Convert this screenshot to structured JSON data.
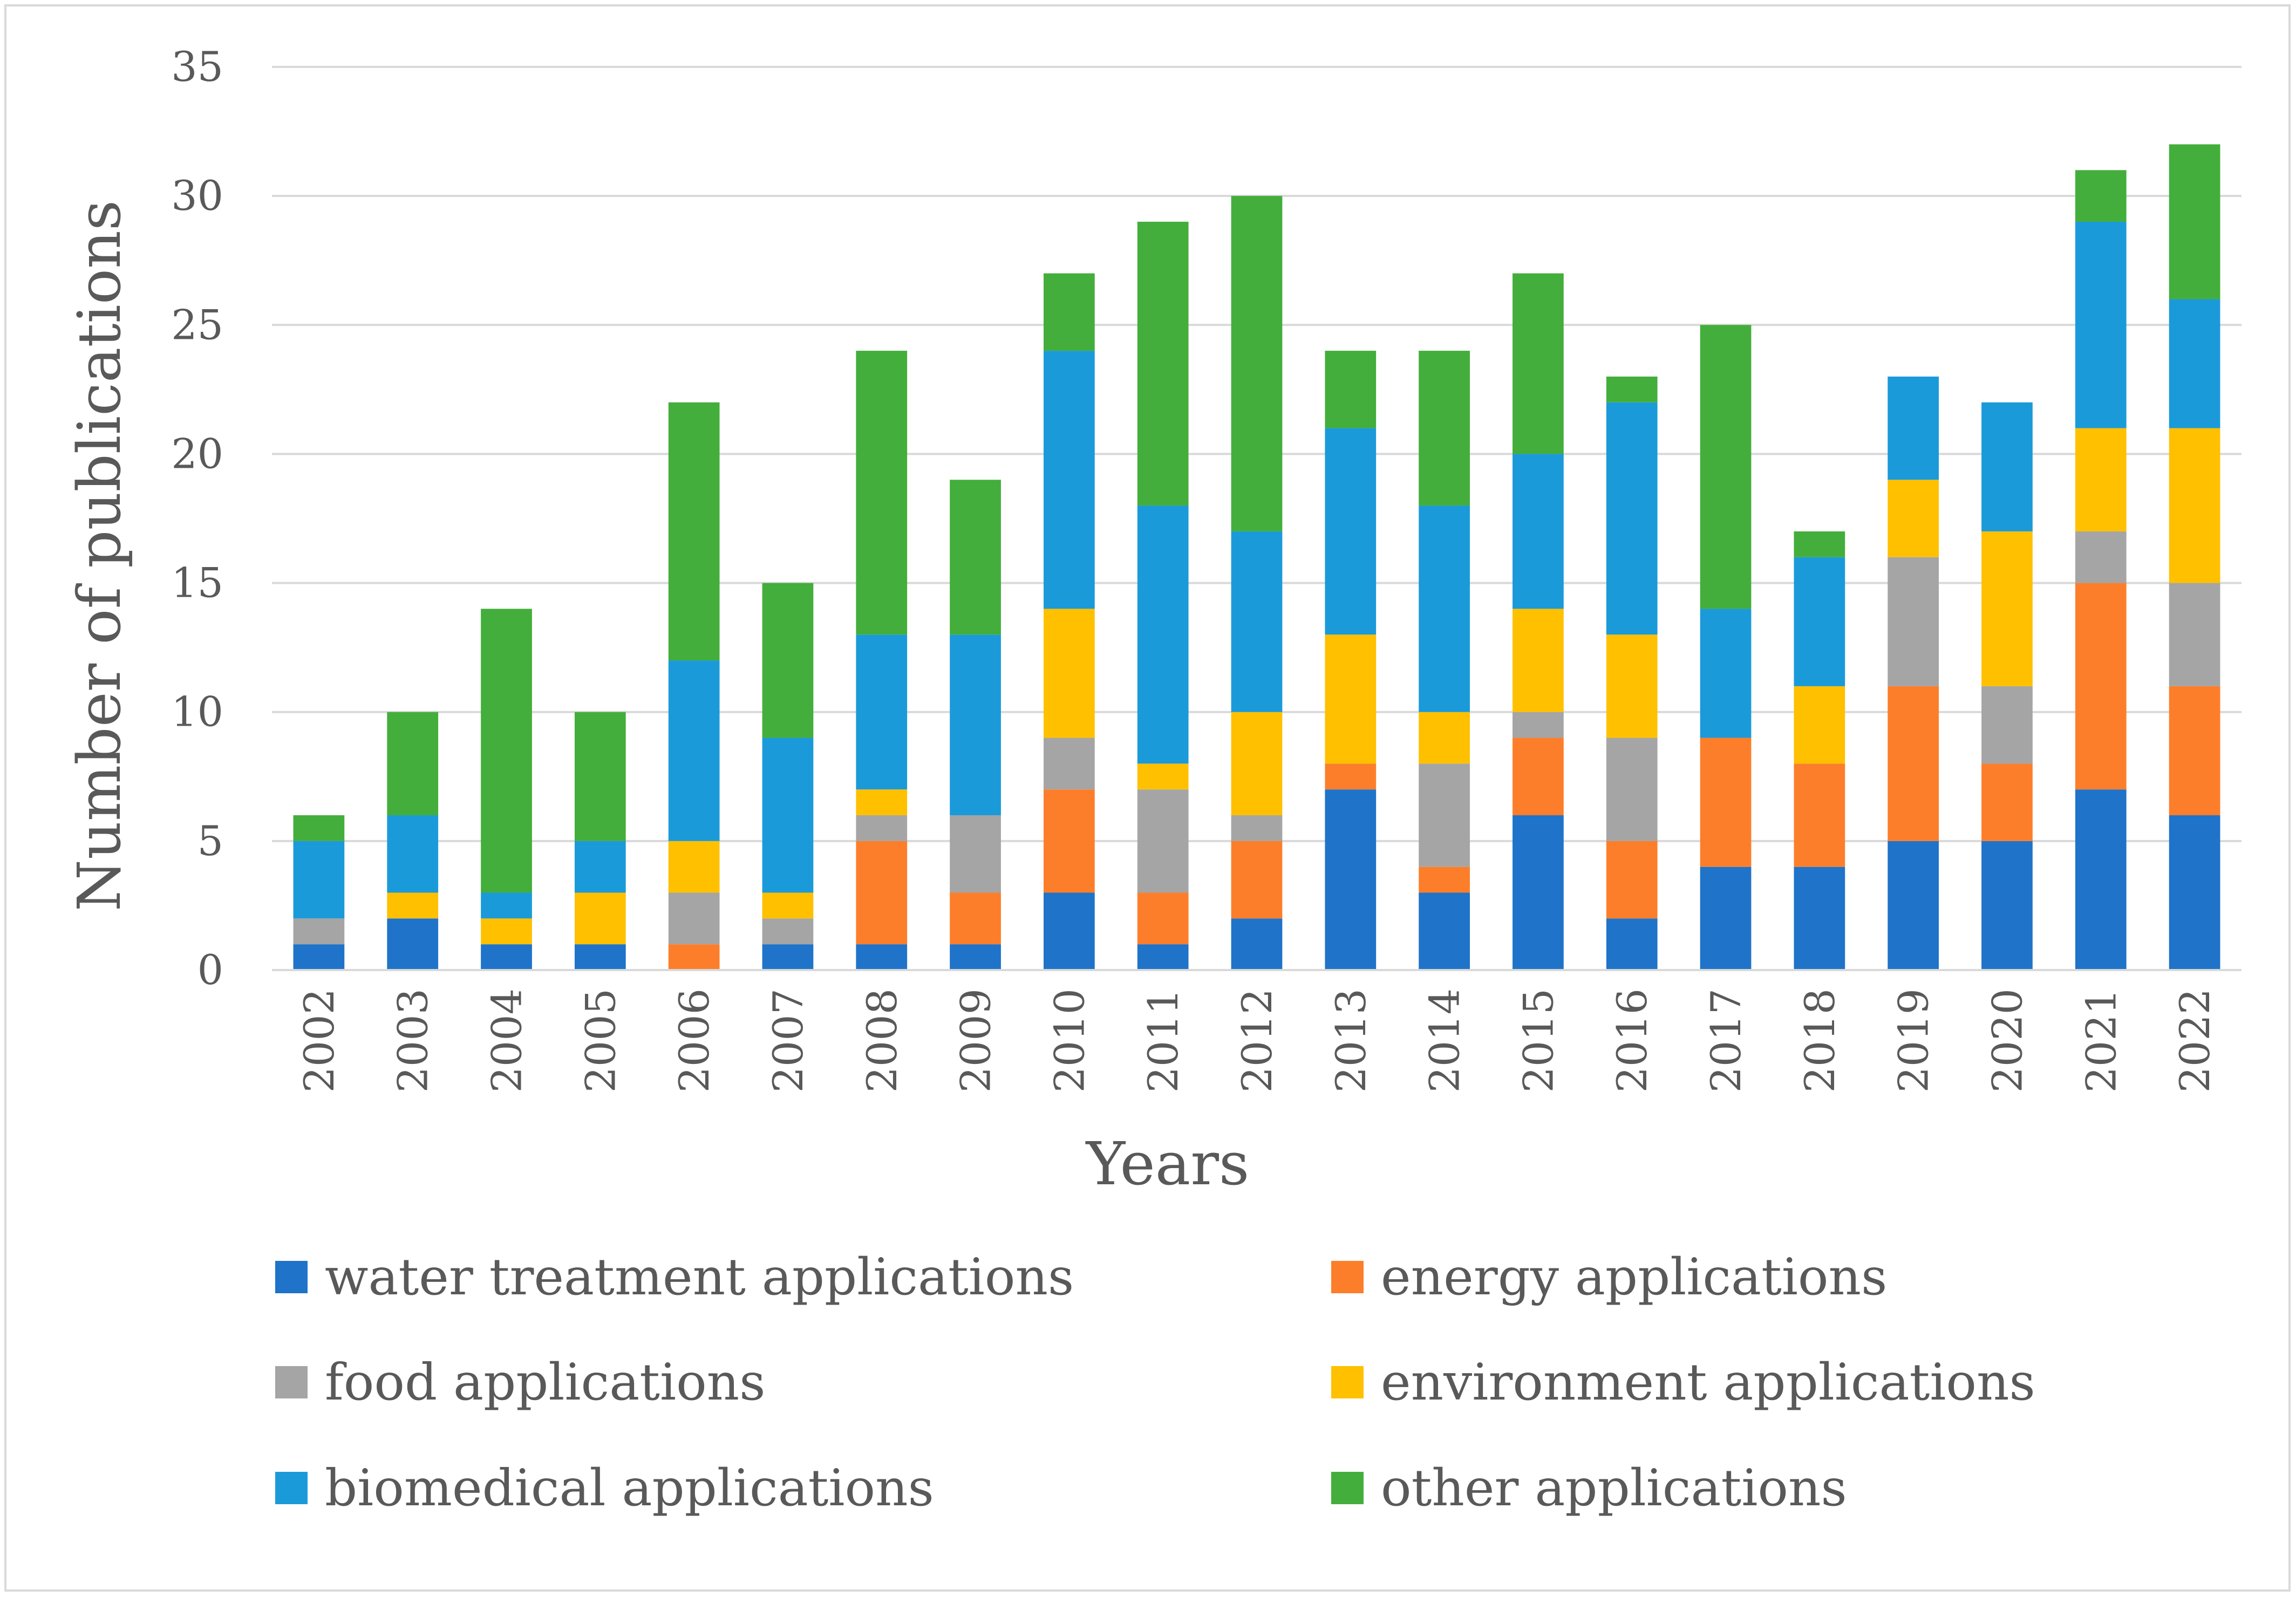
{
  "chart_data": {
    "type": "bar",
    "stacked": true,
    "title": "",
    "xlabel": "Years",
    "ylabel": "Number of publications",
    "ylim": [
      0,
      35
    ],
    "yticks": [
      0,
      5,
      10,
      15,
      20,
      25,
      30,
      35
    ],
    "grid": true,
    "legend_position": "bottom",
    "categories": [
      "2002",
      "2003",
      "2004",
      "2005",
      "2006",
      "2007",
      "2008",
      "2009",
      "2010",
      "2011",
      "2012",
      "2013",
      "2014",
      "2015",
      "2016",
      "2017",
      "2018",
      "2019",
      "2020",
      "2021",
      "2022"
    ],
    "series": [
      {
        "name": "water treatment applications",
        "color": "#1f73c9",
        "values": [
          1,
          2,
          1,
          1,
          0,
          1,
          1,
          1,
          3,
          1,
          2,
          7,
          3,
          6,
          2,
          4,
          4,
          5,
          5,
          7,
          6
        ]
      },
      {
        "name": "energy applications",
        "color": "#fd7e2a",
        "values": [
          0,
          0,
          0,
          0,
          1,
          0,
          4,
          2,
          4,
          2,
          3,
          1,
          1,
          3,
          3,
          5,
          4,
          6,
          3,
          8,
          5
        ]
      },
      {
        "name": "food applications",
        "color": "#a5a5a5",
        "values": [
          1,
          0,
          0,
          0,
          2,
          1,
          1,
          3,
          2,
          4,
          1,
          0,
          4,
          1,
          4,
          0,
          0,
          5,
          3,
          2,
          4
        ]
      },
      {
        "name": "environment applications",
        "color": "#ffc000",
        "values": [
          0,
          1,
          1,
          2,
          2,
          1,
          1,
          0,
          5,
          1,
          4,
          5,
          2,
          4,
          4,
          0,
          3,
          3,
          6,
          4,
          6
        ]
      },
      {
        "name": "biomedical applications",
        "color": "#1b9ad9",
        "values": [
          3,
          3,
          1,
          2,
          7,
          6,
          6,
          7,
          10,
          10,
          7,
          8,
          8,
          6,
          9,
          5,
          5,
          4,
          5,
          8,
          5
        ]
      },
      {
        "name": "other applications",
        "color": "#43ae3b",
        "values": [
          1,
          4,
          11,
          5,
          10,
          6,
          11,
          6,
          3,
          11,
          13,
          3,
          6,
          7,
          1,
          11,
          1,
          0,
          0,
          2,
          6
        ]
      }
    ]
  }
}
